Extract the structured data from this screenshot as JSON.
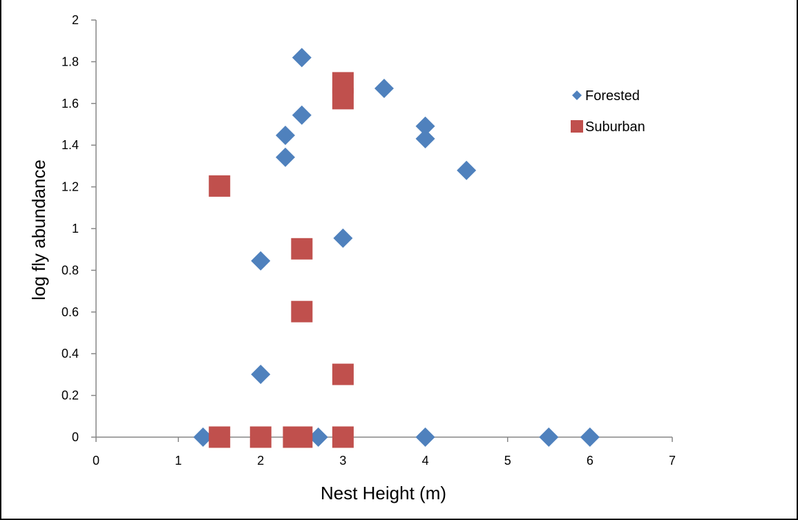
{
  "chart_data": {
    "type": "scatter",
    "title": "",
    "xlabel": "Nest Height (m)",
    "ylabel": "log fly abundance",
    "xlim": [
      0,
      7
    ],
    "ylim": [
      0,
      2
    ],
    "xticks": [
      "0",
      "1",
      "2",
      "3",
      "4",
      "5",
      "6",
      "7"
    ],
    "yticks": [
      "0",
      "0.2",
      "0.4",
      "0.6",
      "0.8",
      "1",
      "1.2",
      "1.4",
      "1.6",
      "1.8",
      "2"
    ],
    "grid": false,
    "legend_position": "right",
    "series": [
      {
        "name": "Forested",
        "marker": "diamond",
        "color": "#4F81BD",
        "points": [
          [
            1.3,
            0
          ],
          [
            2,
            0.845
          ],
          [
            2,
            0.301
          ],
          [
            2.3,
            1.447
          ],
          [
            2.3,
            1.342
          ],
          [
            2.5,
            1.82
          ],
          [
            2.5,
            1.544
          ],
          [
            2.7,
            0
          ],
          [
            3,
            0.954
          ],
          [
            3.5,
            1.672
          ],
          [
            4,
            1.491
          ],
          [
            4,
            1.431
          ],
          [
            4,
            0
          ],
          [
            4.5,
            1.279
          ],
          [
            5.5,
            0
          ],
          [
            6,
            0
          ]
        ]
      },
      {
        "name": "Suburban",
        "marker": "square",
        "color": "#C0504D",
        "points": [
          [
            1.5,
            1.204
          ],
          [
            1.5,
            0
          ],
          [
            2,
            0
          ],
          [
            2.4,
            0
          ],
          [
            2.5,
            0.903
          ],
          [
            2.5,
            0.602
          ],
          [
            2.5,
            0
          ],
          [
            3,
            1.699
          ],
          [
            3,
            1.623
          ],
          [
            3,
            0.301
          ],
          [
            3,
            0
          ]
        ]
      }
    ]
  }
}
